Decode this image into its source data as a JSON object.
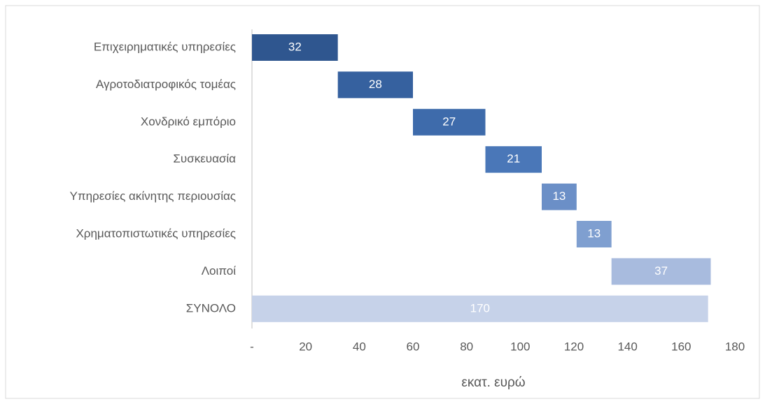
{
  "chart_data": {
    "type": "waterfall",
    "categories": [
      "Επιχειρηματικές υπηρεσίες",
      "Αγροτοδιατροφικός τομέας",
      "Χονδρικό εμπόριο",
      "Συσκευασία",
      "Υπηρεσίες ακίνητης περιουσίας",
      "Χρηματοπιστωτικές υπηρεσίες",
      "Λοιποί"
    ],
    "values": [
      32,
      28,
      27,
      21,
      13,
      13,
      37
    ],
    "colors": [
      "#2f568f",
      "#36619f",
      "#3e6bab",
      "#4a77b8",
      "#6b8fc7",
      "#7f9fd0",
      "#a8bbde"
    ],
    "total": {
      "label": "ΣΥΝΟΛΟ",
      "value": 170,
      "color": "#c6d2e9"
    },
    "xlabel": "εκατ. ευρώ",
    "xlim": [
      0,
      180
    ],
    "xticks": [
      {
        "value": 0,
        "label": "-"
      },
      20,
      40,
      60,
      80,
      100,
      120,
      140,
      160,
      180
    ]
  }
}
